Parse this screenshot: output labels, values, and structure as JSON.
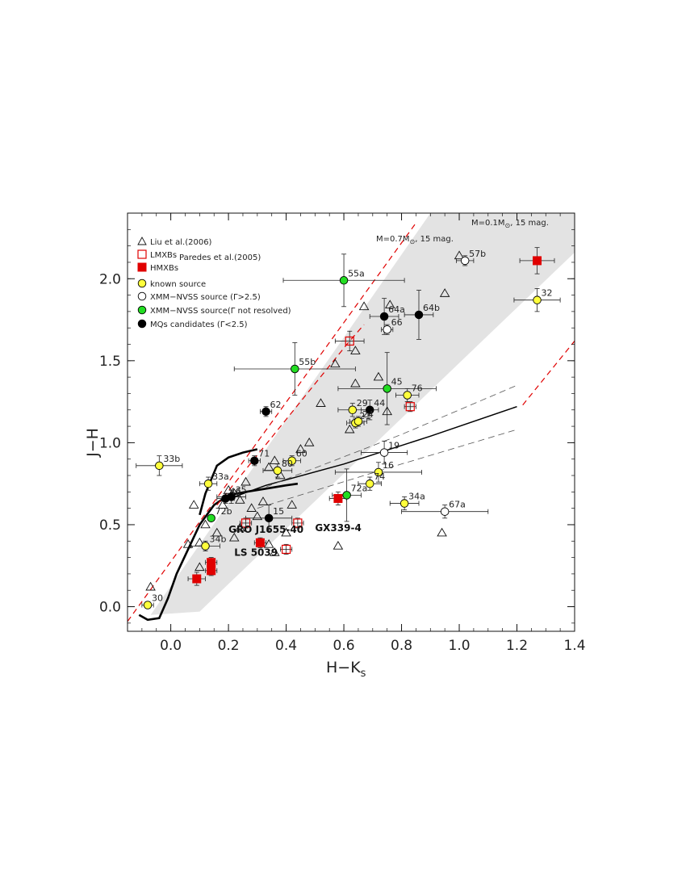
{
  "chart_data": {
    "type": "scatter",
    "xlabel": "H−K",
    "xlabel_sub": "s",
    "ylabel": "J−H",
    "xlim": [
      -0.15,
      1.4
    ],
    "ylim": [
      -0.15,
      2.4
    ],
    "x_ticks": [
      "0.0",
      "0.2",
      "0.4",
      "0.6",
      "0.8",
      "1.0",
      "1.2",
      "1.4"
    ],
    "y_ticks": [
      "0.0",
      "0.5",
      "1.0",
      "1.5",
      "2.0"
    ],
    "legend_placement": "top-left",
    "legend": [
      {
        "marker": "triangle",
        "label": "Liu et al.(2006)"
      },
      {
        "marker": "open-square-red",
        "label": "LMXBs"
      },
      {
        "marker": "filled-square-red",
        "label": "HMXBs"
      },
      {
        "marker": "yellow-circle",
        "label": "known source"
      },
      {
        "marker": "open-circle",
        "label": "XMM−NVSS source (Γ>2.5)"
      },
      {
        "marker": "green-circle",
        "label": "XMM−NVSS source(Γ not resolved)"
      },
      {
        "marker": "black-circle",
        "label": "MQs candidates (Γ<2.5)"
      }
    ],
    "legend_group_label": "Paredes et al.(2005)",
    "reddening_labels": {
      "m01": {
        "prefix": "M=0.1M",
        "suffix": ", 15 mag."
      },
      "m07": {
        "prefix": "M=0.7M",
        "suffix": ", 15 mag."
      }
    },
    "triangles": [
      [
        -0.07,
        0.12
      ],
      [
        0.06,
        0.38
      ],
      [
        0.08,
        0.62
      ],
      [
        0.1,
        0.39
      ],
      [
        0.12,
        0.5
      ],
      [
        0.1,
        0.24
      ],
      [
        0.16,
        0.45
      ],
      [
        0.18,
        0.62
      ],
      [
        0.2,
        0.71
      ],
      [
        0.22,
        0.42
      ],
      [
        0.24,
        0.65
      ],
      [
        0.26,
        0.76
      ],
      [
        0.28,
        0.6
      ],
      [
        0.3,
        0.55
      ],
      [
        0.32,
        0.64
      ],
      [
        0.34,
        0.85
      ],
      [
        0.36,
        0.89
      ],
      [
        0.38,
        0.8
      ],
      [
        0.36,
        0.33
      ],
      [
        0.42,
        0.62
      ],
      [
        0.45,
        0.96
      ],
      [
        0.48,
        1.0
      ],
      [
        0.52,
        1.24
      ],
      [
        0.57,
        1.48
      ],
      [
        0.62,
        1.08
      ],
      [
        0.64,
        1.36
      ],
      [
        0.64,
        1.56
      ],
      [
        0.67,
        1.83
      ],
      [
        0.72,
        1.4
      ],
      [
        0.76,
        1.84
      ],
      [
        0.75,
        1.19
      ],
      [
        0.94,
        0.45
      ],
      [
        0.95,
        1.91
      ],
      [
        1.0,
        2.14
      ],
      [
        0.58,
        0.37
      ],
      [
        0.34,
        0.38
      ],
      [
        0.4,
        0.45
      ],
      [
        0.24,
        0.48
      ],
      [
        0.22,
        0.69
      ]
    ],
    "lmxbs": [
      {
        "x": 0.26,
        "y": 0.51,
        "xerr": 0.02,
        "yerr": 0.03
      },
      {
        "x": 0.44,
        "y": 0.51,
        "xerr": 0.02,
        "yerr": 0.03
      },
      {
        "x": 0.4,
        "y": 0.35,
        "xerr": 0.02,
        "yerr": 0.03
      },
      {
        "x": 0.83,
        "y": 1.22,
        "xerr": 0.02,
        "yerr": 0.03
      },
      {
        "x": 0.62,
        "y": 1.62,
        "xerr": 0.05,
        "yerr": 0.06
      }
    ],
    "hmxbs": [
      {
        "x": 0.09,
        "y": 0.17,
        "xerr": 0.03,
        "yerr": 0.04
      },
      {
        "x": 0.14,
        "y": 0.22,
        "xerr": 0.02,
        "yerr": 0.03
      },
      {
        "x": 0.14,
        "y": 0.27,
        "xerr": 0.02,
        "yerr": 0.03
      },
      {
        "x": 0.31,
        "y": 0.39,
        "xerr": 0.02,
        "yerr": 0.03
      },
      {
        "x": 0.58,
        "y": 0.66,
        "xerr": 0.03,
        "yerr": 0.04
      },
      {
        "x": 1.27,
        "y": 2.11,
        "xerr": 0.06,
        "yerr": 0.08
      }
    ],
    "known_sources": [
      {
        "id": "30",
        "x": -0.08,
        "y": 0.01,
        "xerr": 0.02,
        "yerr": 0.02
      },
      {
        "id": "33b",
        "x": -0.04,
        "y": 0.86,
        "xerr": 0.08,
        "yerr": 0.06
      },
      {
        "id": "33a",
        "x": 0.13,
        "y": 0.75,
        "xerr": 0.03,
        "yerr": 0.04
      },
      {
        "id": "34b",
        "x": 0.12,
        "y": 0.37,
        "xerr": 0.05,
        "yerr": 0.03
      },
      {
        "id": "60",
        "x": 0.42,
        "y": 0.89,
        "xerr": 0.03,
        "yerr": 0.03
      },
      {
        "id": "80",
        "x": 0.37,
        "y": 0.83,
        "xerr": 0.05,
        "yerr": 0.04
      },
      {
        "id": "29",
        "x": 0.63,
        "y": 1.2,
        "xerr": 0.05,
        "yerr": 0.04
      },
      {
        "id": "21",
        "x": 0.64,
        "y": 1.12,
        "xerr": 0.03,
        "yerr": 0.03
      },
      {
        "id": "24",
        "x": 0.65,
        "y": 1.13,
        "xerr": 0.03,
        "yerr": 0.03
      },
      {
        "id": "76",
        "x": 0.82,
        "y": 1.29,
        "xerr": 0.04,
        "yerr": 0.04
      },
      {
        "id": "16",
        "x": 0.72,
        "y": 0.82,
        "xerr": 0.15,
        "yerr": 0.06
      },
      {
        "id": "74",
        "x": 0.69,
        "y": 0.75,
        "xerr": 0.04,
        "yerr": 0.04
      },
      {
        "id": "34a",
        "x": 0.81,
        "y": 0.63,
        "xerr": 0.05,
        "yerr": 0.04
      },
      {
        "id": "32",
        "x": 1.27,
        "y": 1.87,
        "xerr": 0.08,
        "yerr": 0.07
      }
    ],
    "xmm_soft": [
      {
        "id": "19",
        "x": 0.74,
        "y": 0.94,
        "xerr": 0.08,
        "yerr": 0.07
      },
      {
        "id": "66",
        "x": 0.75,
        "y": 1.69,
        "xerr": 0.02,
        "yerr": 0.03
      },
      {
        "id": "57b",
        "x": 1.02,
        "y": 2.11,
        "xerr": 0.03,
        "yerr": 0.03
      },
      {
        "id": "67a",
        "x": 0.95,
        "y": 0.58,
        "xerr": 0.15,
        "yerr": 0.04
      }
    ],
    "xmm_unresolved": [
      {
        "id": "55a",
        "x": 0.6,
        "y": 1.99,
        "xerr": 0.21,
        "yerr": 0.16
      },
      {
        "id": "55b",
        "x": 0.43,
        "y": 1.45,
        "xerr": 0.21,
        "yerr": 0.16
      },
      {
        "id": "45",
        "x": 0.75,
        "y": 1.33,
        "xerr": 0.17,
        "yerr": 0.22
      },
      {
        "id": "72a",
        "x": 0.61,
        "y": 0.68,
        "xerr": 0.05,
        "yerr": 0.16
      },
      {
        "id": "72b",
        "x": 0.14,
        "y": 0.54,
        "xerr": 0.0,
        "yerr": 0.0
      }
    ],
    "mq_candidates": [
      {
        "id": "64a",
        "x": 0.74,
        "y": 1.77,
        "xerr": 0.05,
        "yerr": 0.11
      },
      {
        "id": "64b",
        "x": 0.86,
        "y": 1.78,
        "xerr": 0.05,
        "yerr": 0.15
      },
      {
        "id": "62",
        "x": 0.33,
        "y": 1.19,
        "xerr": 0.02,
        "yerr": 0.03
      },
      {
        "id": "71",
        "x": 0.29,
        "y": 0.89,
        "xerr": 0.02,
        "yerr": 0.03
      },
      {
        "id": "44",
        "x": 0.69,
        "y": 1.2,
        "xerr": 0.03,
        "yerr": 0.06
      },
      {
        "id": "15",
        "x": 0.34,
        "y": 0.54,
        "xerr": 0.08,
        "yerr": 0.08
      },
      {
        "id": "46",
        "x": 0.19,
        "y": 0.66,
        "xerr": 0.03,
        "yerr": 0.03
      },
      {
        "id": "35",
        "x": 0.21,
        "y": 0.67,
        "xerr": 0.05,
        "yerr": 0.04
      }
    ],
    "named_sources": [
      {
        "label": "GRO J1655-40",
        "x": 0.2,
        "y": 0.45
      },
      {
        "label": "GX339-4",
        "x": 0.5,
        "y": 0.46
      },
      {
        "label": "LS 5039",
        "x": 0.22,
        "y": 0.31
      }
    ],
    "shaded_band": [
      [
        -0.07,
        -0.05
      ],
      [
        0.9,
        2.4
      ],
      [
        1.4,
        2.4
      ],
      [
        1.4,
        2.16
      ],
      [
        0.1,
        -0.03
      ]
    ],
    "main_sequence": [
      [
        -0.11,
        -0.05
      ],
      [
        -0.08,
        -0.08
      ],
      [
        -0.04,
        -0.07
      ],
      [
        -0.01,
        0.05
      ],
      [
        0.02,
        0.2
      ],
      [
        0.06,
        0.35
      ],
      [
        0.1,
        0.5
      ],
      [
        0.15,
        0.62
      ],
      [
        0.2,
        0.68
      ],
      [
        0.26,
        0.7
      ],
      [
        0.33,
        0.72
      ],
      [
        0.4,
        0.74
      ],
      [
        0.44,
        0.75
      ]
    ],
    "giant_branch": [
      [
        0.1,
        0.56
      ],
      [
        0.12,
        0.69
      ],
      [
        0.16,
        0.86
      ],
      [
        0.2,
        0.91
      ],
      [
        0.25,
        0.94
      ],
      [
        0.3,
        0.96
      ]
    ],
    "solid_line": [
      [
        0.22,
        0.67
      ],
      [
        0.33,
        0.74
      ],
      [
        0.6,
        0.87
      ],
      [
        0.9,
        1.04
      ],
      [
        1.2,
        1.22
      ]
    ],
    "dashed_gray_upper": [
      [
        0.33,
        0.73
      ],
      [
        0.8,
        1.05
      ],
      [
        1.2,
        1.35
      ]
    ],
    "dashed_gray_lower": [
      [
        0.3,
        0.6
      ],
      [
        0.8,
        0.87
      ],
      [
        1.2,
        1.08
      ]
    ],
    "reddening_01": [
      [
        -0.15,
        -0.09
      ],
      [
        0.85,
        2.34
      ]
    ],
    "reddening_07": [
      [
        0.16,
        0.62
      ],
      [
        0.62,
        1.62
      ],
      [
        0.67,
        1.72
      ]
    ],
    "reddening_right": [
      [
        1.22,
        1.23
      ],
      [
        1.4,
        1.62
      ]
    ],
    "colors": {
      "band": "#e3e3e3",
      "red": "#e00000",
      "yellow": "#ffff3c",
      "green": "#22dd22",
      "black": "#000000"
    }
  }
}
